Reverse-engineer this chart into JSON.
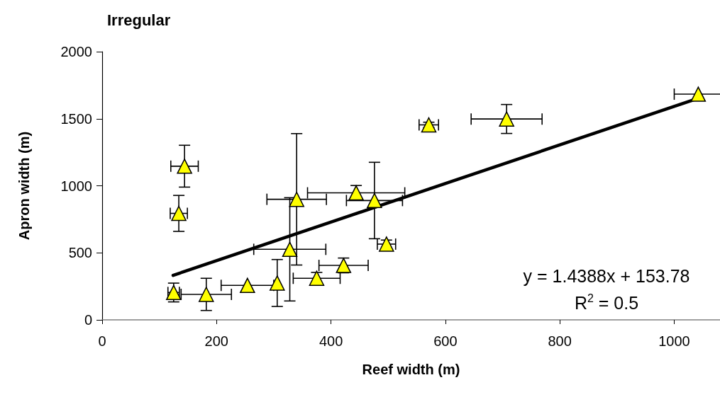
{
  "chart_data": {
    "type": "scatter",
    "title": "Irregular",
    "xlabel": "Reef width (m)",
    "ylabel": "Apron width (m)",
    "xlim": [
      0,
      1080
    ],
    "xticks": [
      0,
      200,
      400,
      600,
      800,
      1000
    ],
    "ylim": [
      0,
      2000
    ],
    "yticks": [
      0,
      500,
      1000,
      1500,
      2000
    ],
    "grid": false,
    "annotations": [
      "y = 1.4388x + 153.78",
      "R$^{2}$ = 0.5"
    ],
    "series": [
      {
        "color": "#ffff00",
        "marker": "triangle",
        "x": [
          125,
          182,
          254,
          306,
          328,
          340,
          375,
          422,
          444,
          476,
          497,
          144,
          134,
          571,
          707,
          1042
        ],
        "values": [
          204,
          190,
          257,
          275,
          526,
          899,
          310,
          406,
          947,
          890,
          565,
          1146,
          794,
          1454,
          1498,
          1683
        ],
        "errors": [
          70,
          120,
          null,
          175,
          385,
          490,
          44,
          55,
          55,
          285,
          30,
          156,
          134,
          20,
          108,
          null
        ],
        "xerrors": [
          10,
          44,
          46,
          null,
          63,
          52,
          41,
          43,
          85,
          49,
          16,
          24,
          15,
          17,
          62,
          42
        ]
      },
      {
        "type": "line",
        "color": "#000000",
        "marker": "none",
        "line_style": "solid",
        "x": [
          124,
          1042
        ],
        "values": [
          332,
          1653
        ]
      }
    ]
  }
}
